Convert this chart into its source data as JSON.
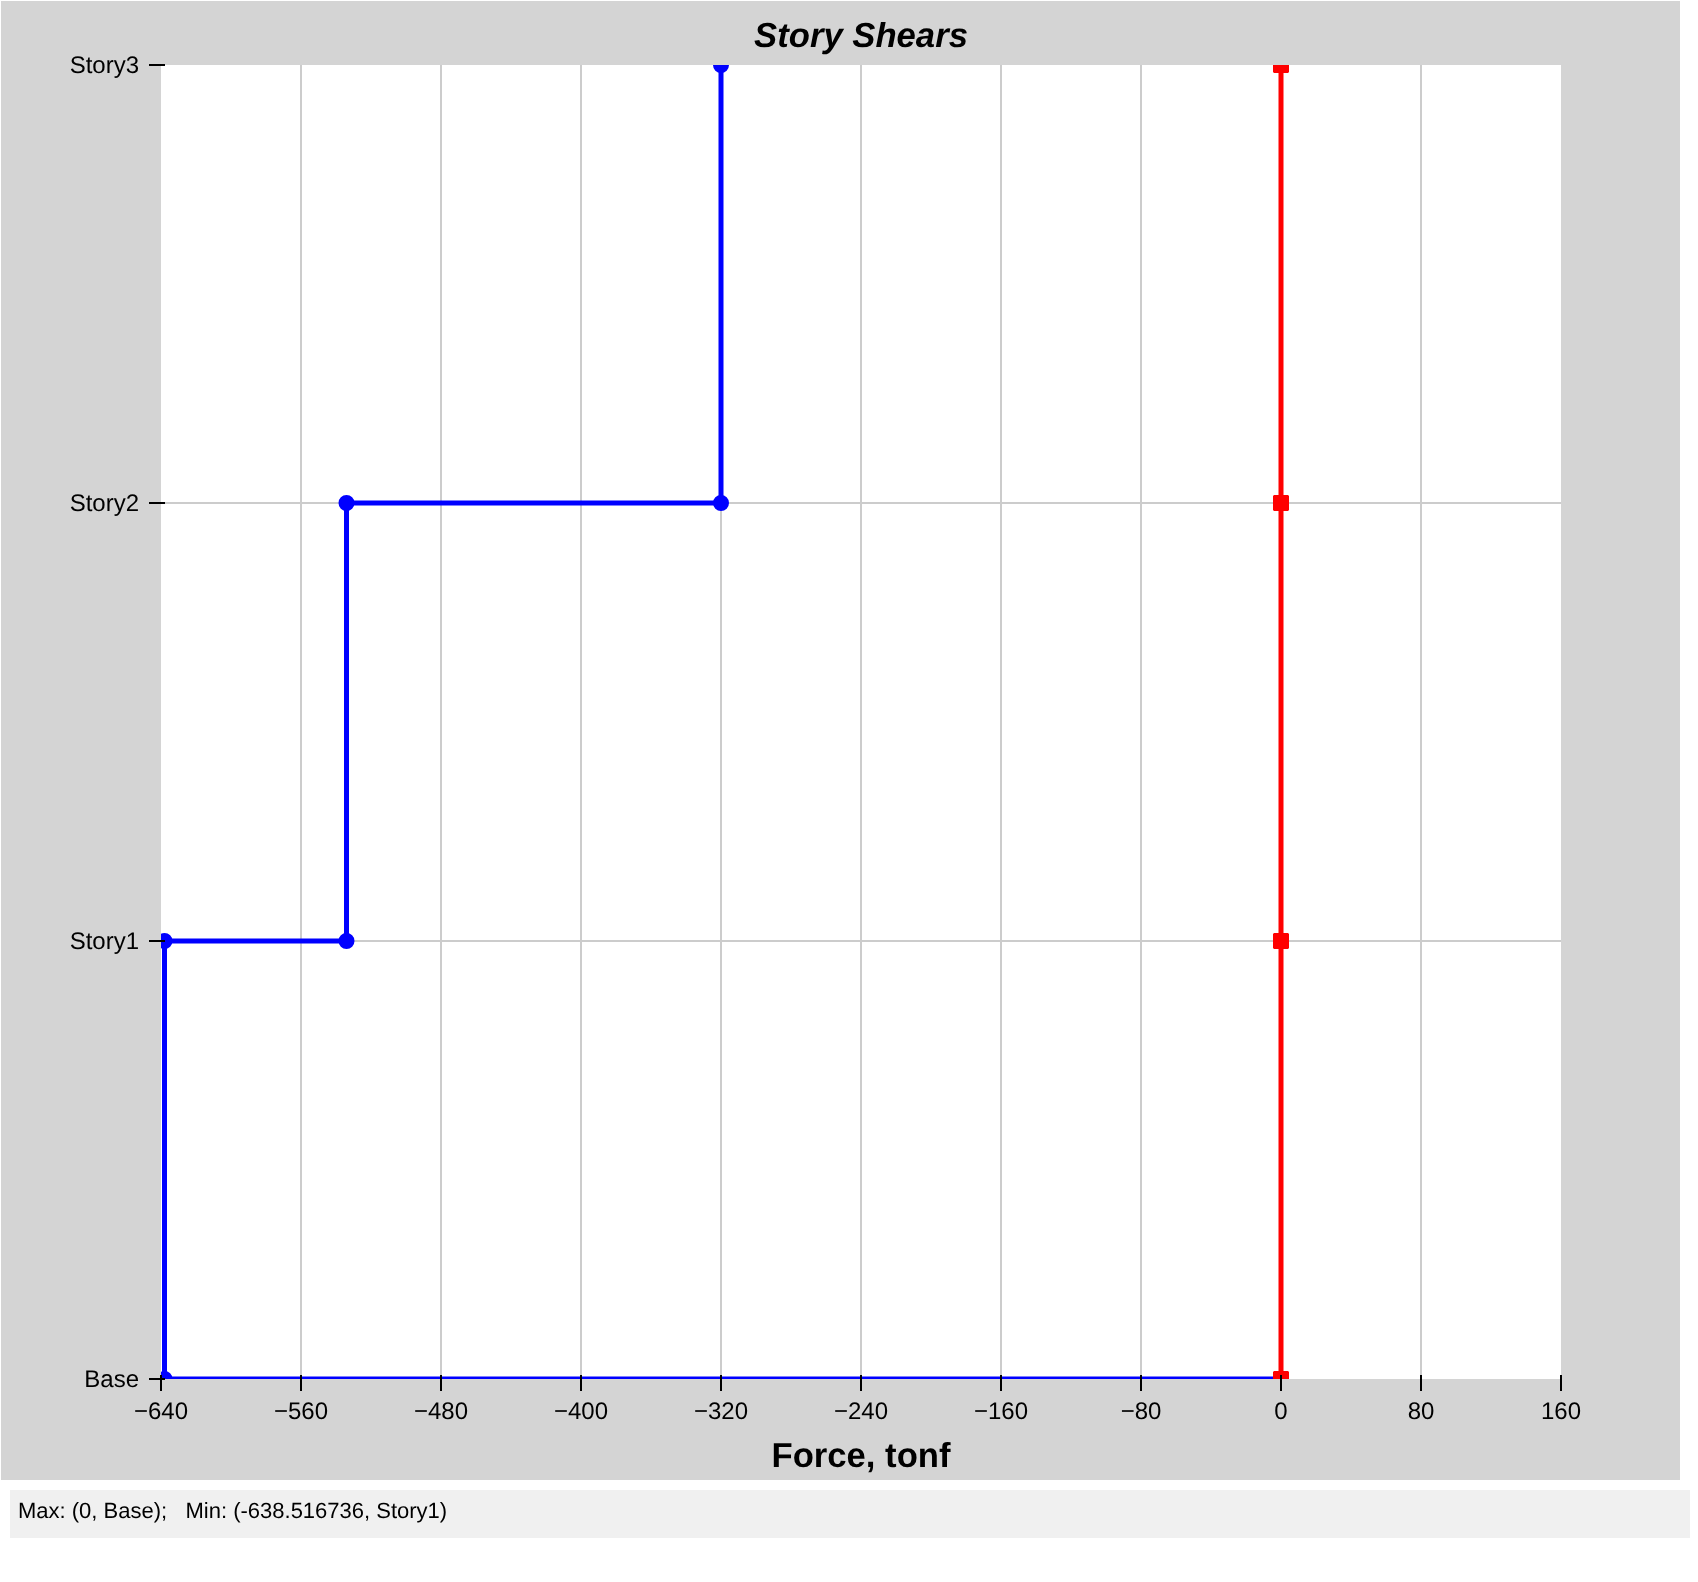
{
  "chart_data": {
    "type": "step",
    "orientation": "horizontal",
    "title": "Story Shears",
    "xlabel": "Force, tonf",
    "categories": [
      "Story3",
      "Story2",
      "Story1",
      "Base"
    ],
    "xlim": [
      -640,
      160
    ],
    "xticks": [
      -640,
      -560,
      -480,
      -400,
      -320,
      -240,
      -160,
      -80,
      0,
      80,
      160
    ],
    "grid": true,
    "series": [
      {
        "color": "#0000ff",
        "marker": "circle",
        "values": [
          -320,
          -534,
          -638,
          0
        ]
      },
      {
        "type": "scatter",
        "color": "#0000ff",
        "marker": "circle",
        "values": [
          null,
          -320,
          -534,
          -638
        ]
      },
      {
        "color": "#ff0000",
        "marker": "square",
        "values": [
          0,
          0,
          0,
          0
        ]
      }
    ],
    "annotations": [
      "Max: (0, Base);   Min: (-638.516736, Story1)"
    ]
  }
}
